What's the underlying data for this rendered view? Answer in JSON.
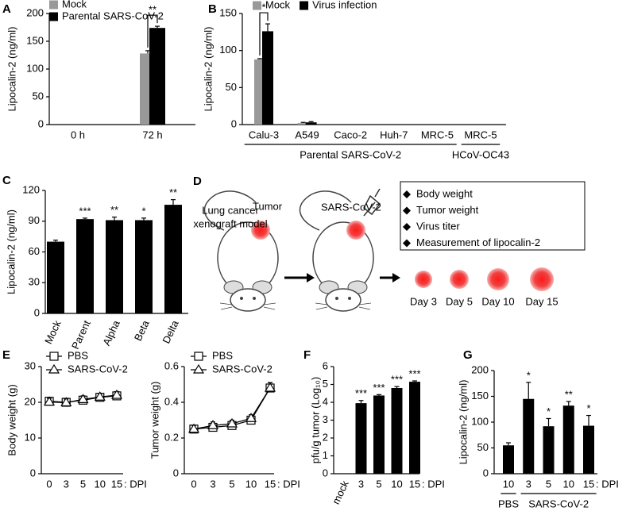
{
  "chart_data": [
    {
      "panel": "A",
      "type": "bar",
      "ylabel": "Lipocalin-2 (ng/ml)",
      "categories": [
        "0 h",
        "72 h"
      ],
      "series": [
        {
          "name": "Mock",
          "color": "#999999",
          "values": [
            0,
            128
          ],
          "errors": [
            0,
            5
          ]
        },
        {
          "name": "Parental SARS-CoV-2",
          "color": "#000000",
          "values": [
            0,
            174
          ],
          "errors": [
            0,
            3
          ]
        }
      ],
      "significance": [
        null,
        "**"
      ],
      "ylim": [
        0,
        200
      ],
      "yticks": [
        0,
        50,
        100,
        150,
        200
      ]
    },
    {
      "panel": "B",
      "type": "bar",
      "ylabel": "Lipocalin-2 (ng/ml)",
      "categories": [
        "Calu-3",
        "A549",
        "Caco-2",
        "Huh-7",
        "MRC-5",
        "MRC-5"
      ],
      "groups": [
        {
          "label": "Parental SARS-CoV-2",
          "size": 5
        },
        {
          "label": "HCoV-OC43",
          "size": 1
        }
      ],
      "series": [
        {
          "name": "Mock",
          "color": "#999999",
          "values": [
            88,
            2,
            0,
            0,
            0,
            0
          ],
          "errors": [
            1,
            1,
            0,
            0,
            0,
            0
          ]
        },
        {
          "name": "Virus infection",
          "color": "#000000",
          "values": [
            126,
            3,
            0,
            0,
            0,
            0
          ],
          "errors": [
            10,
            1,
            0,
            0,
            0,
            0
          ]
        }
      ],
      "significance": [
        "*",
        null,
        null,
        null,
        null,
        null
      ],
      "ylim": [
        0,
        150
      ],
      "yticks": [
        0,
        50,
        100,
        150
      ]
    },
    {
      "panel": "C",
      "type": "bar",
      "ylabel": "Lipocalin-2 (ng/ml)",
      "categories": [
        "Mock",
        "Parent",
        "Alpha",
        "Beta",
        "Delta"
      ],
      "color": "#000000",
      "values": [
        70,
        92,
        91,
        91,
        106
      ],
      "errors": [
        1.5,
        1,
        3,
        2,
        5
      ],
      "significance": [
        null,
        "***",
        "**",
        "*",
        "**"
      ],
      "ylim": [
        0,
        120
      ],
      "yticks": [
        0,
        30,
        60,
        90,
        120
      ]
    },
    {
      "panel": "E",
      "type": "line",
      "ylabel": "Body weight (g)",
      "categories": [
        "0",
        "3",
        "5",
        "10",
        "15"
      ],
      "x_suffix": ": DPI",
      "series": [
        {
          "name": "PBS",
          "marker": "square",
          "color": "#000000",
          "values": [
            20.3,
            20.0,
            20.6,
            21.4,
            21.8
          ],
          "errors": [
            1,
            1,
            1,
            1,
            1
          ]
        },
        {
          "name": "SARS-CoV-2",
          "marker": "triangle",
          "color": "#000000",
          "values": [
            20.1,
            19.9,
            20.8,
            21.5,
            22.0
          ],
          "errors": [
            1,
            1,
            1,
            1,
            1
          ]
        }
      ],
      "ylim": [
        0,
        30
      ],
      "yticks": [
        0,
        10,
        20,
        30
      ]
    },
    {
      "type": "line",
      "ylabel": "Tumor weight (g)",
      "categories": [
        "0",
        "3",
        "5",
        "10",
        "15"
      ],
      "x_suffix": ": DPI",
      "series": [
        {
          "name": "PBS",
          "marker": "square",
          "color": "#000000",
          "values": [
            0.25,
            0.26,
            0.27,
            0.3,
            0.48
          ],
          "errors": [
            0.02,
            0.02,
            0.02,
            0.02,
            0.03
          ]
        },
        {
          "name": "SARS-CoV-2",
          "marker": "triangle",
          "color": "#000000",
          "values": [
            0.25,
            0.27,
            0.28,
            0.31,
            0.48
          ],
          "errors": [
            0.02,
            0.02,
            0.02,
            0.02,
            0.03
          ]
        }
      ],
      "ylim": [
        0,
        0.6
      ],
      "yticks": [
        0,
        0.2,
        0.4,
        0.6
      ]
    },
    {
      "panel": "F",
      "type": "bar",
      "ylabel": "pfu/g tumor (Log₁₀)",
      "categories": [
        "mock",
        "3",
        "5",
        "10",
        "15"
      ],
      "x_suffix": ": DPI",
      "color": "#000000",
      "values": [
        0,
        3.95,
        4.38,
        4.8,
        5.15
      ],
      "errors": [
        0,
        0.15,
        0.05,
        0.08,
        0.05
      ],
      "significance": [
        null,
        "***",
        "***",
        "***",
        "***"
      ],
      "ylim": [
        0,
        6
      ],
      "yticks": [
        0,
        1,
        2,
        3,
        4,
        5,
        6
      ]
    },
    {
      "panel": "G",
      "type": "bar",
      "ylabel": "Lipocalin-2 (ng/ml)",
      "categories": [
        "10",
        "3",
        "5",
        "10",
        "15"
      ],
      "x_suffix": ": DPI",
      "groups": [
        {
          "label": "PBS",
          "size": 1
        },
        {
          "label": "SARS-CoV-2",
          "size": 4
        }
      ],
      "color": "#000000",
      "values": [
        55,
        145,
        92,
        132,
        93
      ],
      "errors": [
        5,
        32,
        15,
        8,
        20
      ],
      "significance": [
        null,
        "*",
        "*",
        "**",
        "*"
      ],
      "ylim": [
        0,
        200
      ],
      "yticks": [
        0,
        50,
        100,
        150,
        200
      ]
    }
  ],
  "diagram": {
    "panel": "D",
    "model_label": [
      "Lung cancer",
      "xenograft model"
    ],
    "tumor_label": "Tumor",
    "virus_label": "SARS-CoV-2",
    "measurements": [
      "Body weight",
      "Tumor weight",
      "Virus titer",
      "Measurement of lipocalin-2"
    ],
    "days": [
      "Day 3",
      "Day 5",
      "Day 10",
      "Day 15"
    ]
  }
}
